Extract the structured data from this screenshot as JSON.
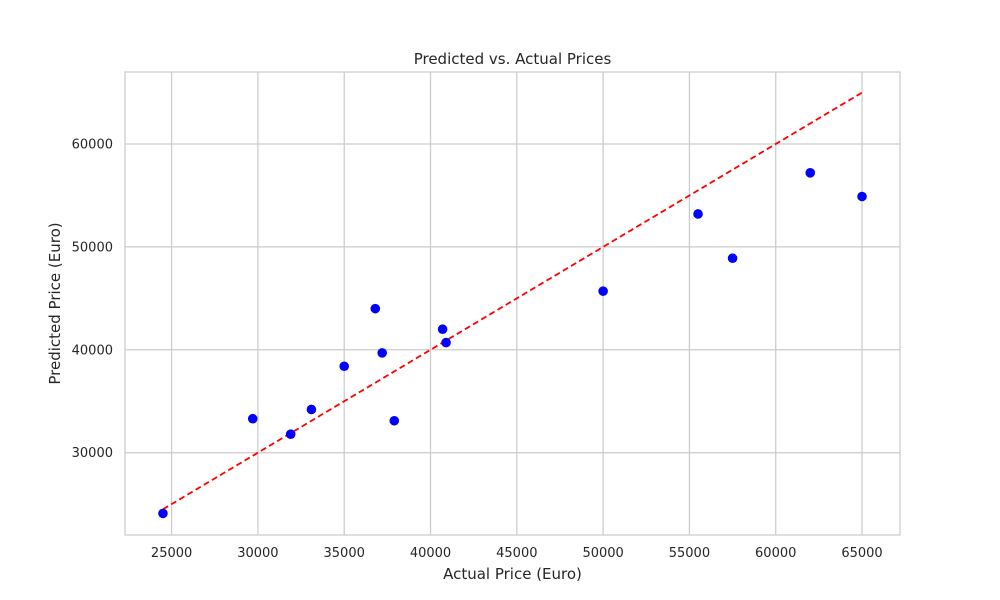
{
  "chart_data": {
    "type": "scatter",
    "title": "Predicted vs. Actual Prices",
    "xlabel": "Actual Price (Euro)",
    "ylabel": "Predicted Price (Euro)",
    "xlim": [
      22300,
      67200
    ],
    "ylim": [
      22000,
      67000
    ],
    "xticks": [
      25000,
      30000,
      35000,
      40000,
      45000,
      50000,
      55000,
      60000,
      65000
    ],
    "yticks": [
      30000,
      40000,
      50000,
      60000
    ],
    "grid": true,
    "points": [
      {
        "x": 24500,
        "y": 24100
      },
      {
        "x": 29700,
        "y": 33300
      },
      {
        "x": 31900,
        "y": 31800
      },
      {
        "x": 33100,
        "y": 34200
      },
      {
        "x": 35000,
        "y": 38400
      },
      {
        "x": 36800,
        "y": 44000
      },
      {
        "x": 37200,
        "y": 39700
      },
      {
        "x": 37900,
        "y": 33100
      },
      {
        "x": 40700,
        "y": 42000
      },
      {
        "x": 40900,
        "y": 40700
      },
      {
        "x": 50000,
        "y": 45700
      },
      {
        "x": 55500,
        "y": 53200
      },
      {
        "x": 57500,
        "y": 48900
      },
      {
        "x": 62000,
        "y": 57200
      },
      {
        "x": 65000,
        "y": 54900
      }
    ],
    "reference_line": {
      "x": [
        24500,
        65000
      ],
      "y": [
        24500,
        65000
      ],
      "style": "dashed"
    },
    "colors": {
      "points": "#0000ff",
      "reference_line": "#ff0000",
      "grid": "#cccccc",
      "frame": "#cccccc"
    }
  }
}
